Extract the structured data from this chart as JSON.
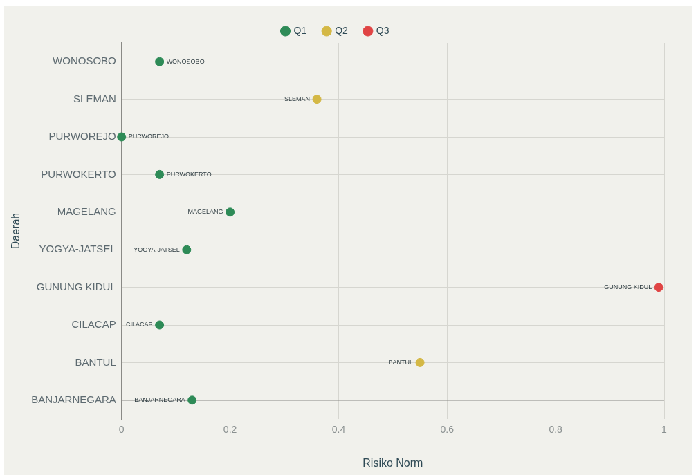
{
  "chart_data": {
    "type": "scatter",
    "orientation": "horizontal",
    "xlabel": "Risiko Norm",
    "ylabel": "Daerah",
    "categories": [
      "WONOSOBO",
      "SLEMAN",
      "PURWOREJO",
      "PURWOKERTO",
      "MAGELANG",
      "YOGYA-JATSEL",
      "GUNUNG KIDUL",
      "CILACAP",
      "BANTUL",
      "BANJARNEGARA"
    ],
    "series": [
      {
        "name": "Q1",
        "color": "#2e8b57",
        "values": [
          0.07,
          null,
          0,
          0.07,
          0.2,
          0.12,
          null,
          0.07,
          null,
          0.13
        ],
        "value_labels": [
          "WONOSOBO",
          null,
          "PURWOREJO",
          "PURWOKERTO",
          "MAGELANG",
          "YOGYA-JATSEL",
          null,
          "CILACAP",
          null,
          "BANJARNEGARA"
        ]
      },
      {
        "name": "Q2",
        "color": "#d4b845",
        "values": [
          null,
          0.36,
          null,
          null,
          null,
          null,
          null,
          null,
          0.55,
          null
        ],
        "value_labels": [
          null,
          "SLEMAN",
          null,
          null,
          null,
          null,
          null,
          null,
          "BANTUL",
          null
        ]
      },
      {
        "name": "Q3",
        "color": "#e04444",
        "values": [
          null,
          null,
          null,
          null,
          null,
          null,
          0.99,
          null,
          null,
          null
        ],
        "value_labels": [
          null,
          null,
          null,
          null,
          null,
          null,
          "GUNUNG KIDUL",
          null,
          null,
          null
        ]
      }
    ],
    "xlim": [
      0,
      1
    ],
    "xticks": [
      0,
      0.2,
      0.4,
      0.6,
      0.8,
      1
    ],
    "grid": true,
    "legend": "top",
    "marker": "circle"
  }
}
